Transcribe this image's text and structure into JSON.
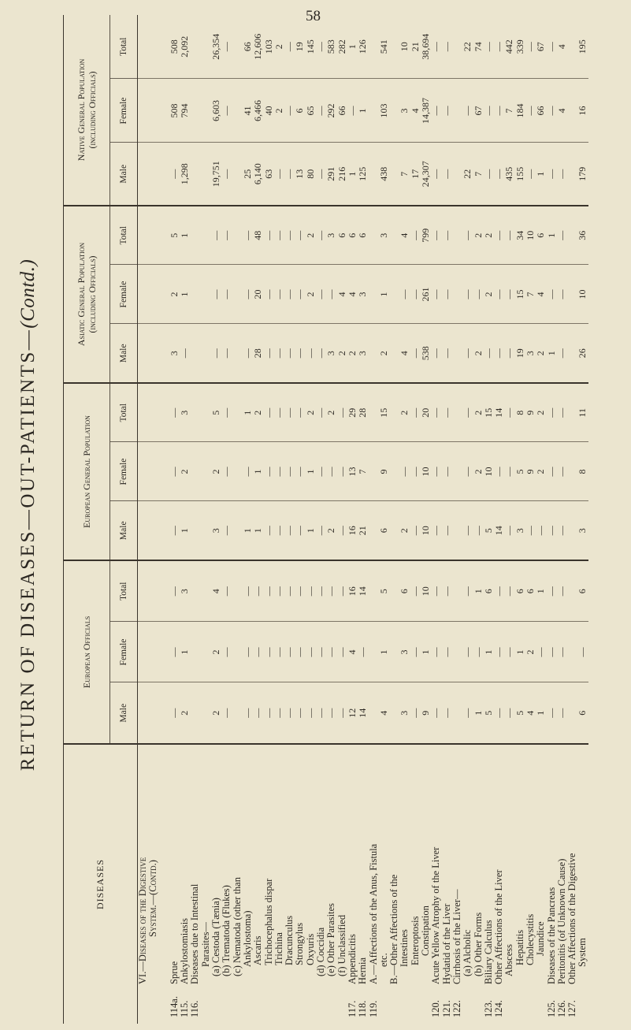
{
  "page_number": "58",
  "title": "RETURN OF DISEASES—OUT-PATIENTS—",
  "title_suffix": "(Contd.)",
  "headers": {
    "diseases": "DISEASES",
    "groups": [
      {
        "name": "European Officials",
        "sub": ""
      },
      {
        "name": "European General Population",
        "sub": ""
      },
      {
        "name": "Asiatic General Population",
        "sub": "(including Officials)"
      },
      {
        "name": "Native General Population",
        "sub": "(including Officials)"
      }
    ],
    "subcolumns": [
      "Male",
      "Female",
      "Total"
    ]
  },
  "rows": [
    {
      "num": "",
      "lines": [
        "VI.—Diseases of the Digestive",
        "System.—(Contd.)"
      ],
      "style": "heading",
      "cells": [
        "",
        "",
        "",
        "",
        "",
        "",
        "",
        "",
        "",
        "",
        "",
        ""
      ]
    },
    {
      "num": "114a.",
      "lines": [
        "Sprue"
      ],
      "style": "",
      "cells": [
        "—",
        "—",
        "—",
        "—",
        "—",
        "—",
        "3",
        "2",
        "5",
        "—",
        "508",
        "508"
      ]
    },
    {
      "num": "115.",
      "lines": [
        "Ankylostomiasis"
      ],
      "style": "",
      "cells": [
        "2",
        "1",
        "3",
        "1",
        "2",
        "3",
        "—",
        "1",
        "1",
        "1,298",
        "794",
        "2,092"
      ]
    },
    {
      "num": "116.",
      "lines": [
        "Diseases due to Intestinal",
        "Parasites—"
      ],
      "style": "cont",
      "cells": [
        "",
        "",
        "",
        "",
        "",
        "",
        "",
        "",
        "",
        "",
        "",
        ""
      ]
    },
    {
      "num": "",
      "lines": [
        "(a) Cestoda (Tænia)"
      ],
      "style": "ind1",
      "cells": [
        "2",
        "2",
        "4",
        "3",
        "2",
        "5",
        "—",
        "—",
        "—",
        "19,751",
        "6,603",
        "26,354"
      ]
    },
    {
      "num": "",
      "lines": [
        "(b) Trematoda (Flukes)"
      ],
      "style": "ind1",
      "cells": [
        "—",
        "—",
        "—",
        "—",
        "—",
        "—",
        "—",
        "—",
        "—",
        "—",
        "—",
        "—"
      ]
    },
    {
      "num": "",
      "lines": [
        "(c) Nematoda (other than",
        "Ankylostoma)"
      ],
      "style": "ind1 cont",
      "cells": [
        "—",
        "—",
        "—",
        "1",
        "—",
        "1",
        "—",
        "—",
        "—",
        "25",
        "41",
        "66"
      ]
    },
    {
      "num": "",
      "lines": [
        "Ascaris"
      ],
      "style": "ind2",
      "cells": [
        "—",
        "—",
        "—",
        "1",
        "1",
        "2",
        "28",
        "20",
        "48",
        "6,140",
        "6,466",
        "12,606"
      ]
    },
    {
      "num": "",
      "lines": [
        "Trichocephalus dispar"
      ],
      "style": "ind2",
      "cells": [
        "—",
        "—",
        "—",
        "—",
        "—",
        "—",
        "—",
        "—",
        "—",
        "63",
        "40",
        "103"
      ]
    },
    {
      "num": "",
      "lines": [
        "Trichina"
      ],
      "style": "ind2",
      "cells": [
        "—",
        "—",
        "—",
        "—",
        "—",
        "—",
        "—",
        "—",
        "—",
        "—",
        "2",
        "2"
      ]
    },
    {
      "num": "",
      "lines": [
        "Dracunculus"
      ],
      "style": "ind2",
      "cells": [
        "—",
        "—",
        "—",
        "—",
        "—",
        "—",
        "—",
        "—",
        "—",
        "—",
        "—",
        "—"
      ]
    },
    {
      "num": "",
      "lines": [
        "Strongylus"
      ],
      "style": "ind2",
      "cells": [
        "—",
        "—",
        "—",
        "—",
        "—",
        "—",
        "—",
        "—",
        "—",
        "13",
        "6",
        "19"
      ]
    },
    {
      "num": "",
      "lines": [
        "Oxyuris"
      ],
      "style": "ind2",
      "cells": [
        "—",
        "—",
        "—",
        "1",
        "1",
        "2",
        "—",
        "2",
        "2",
        "80",
        "65",
        "145"
      ]
    },
    {
      "num": "",
      "lines": [
        "(d) Coccidia"
      ],
      "style": "ind1",
      "cells": [
        "—",
        "—",
        "—",
        "—",
        "—",
        "—",
        "—",
        "—",
        "—",
        "—",
        "—",
        "—"
      ]
    },
    {
      "num": "",
      "lines": [
        "(e) Other Parasites"
      ],
      "style": "ind1",
      "cells": [
        "—",
        "—",
        "—",
        "2",
        "—",
        "2",
        "3",
        "—",
        "3",
        "291",
        "292",
        "583"
      ]
    },
    {
      "num": "",
      "lines": [
        "(f) Unclassified"
      ],
      "style": "ind1",
      "cells": [
        "—",
        "—",
        "—",
        "—",
        "—",
        "—",
        "2",
        "4",
        "6",
        "216",
        "66",
        "282"
      ]
    },
    {
      "num": "117.",
      "lines": [
        "Appendicitis"
      ],
      "style": "",
      "cells": [
        "12",
        "4",
        "16",
        "16",
        "13",
        "29",
        "2",
        "4",
        "6",
        "1",
        "—",
        "1"
      ]
    },
    {
      "num": "118.",
      "lines": [
        "Hernia"
      ],
      "style": "",
      "cells": [
        "14",
        "—",
        "14",
        "21",
        "7",
        "28",
        "3",
        "3",
        "6",
        "125",
        "1",
        "126"
      ]
    },
    {
      "num": "119.",
      "lines": [
        "A.—Affections of the Anus, Fistula",
        "etc."
      ],
      "style": "cont",
      "cells": [
        "4",
        "1",
        "5",
        "6",
        "9",
        "15",
        "2",
        "1",
        "3",
        "438",
        "103",
        "541"
      ]
    },
    {
      "num": "",
      "lines": [
        "B.—Other Affections of the",
        "Intestines"
      ],
      "style": "cont",
      "cells": [
        "3",
        "3",
        "6",
        "2",
        "—",
        "2",
        "4",
        "—",
        "4",
        "7",
        "3",
        "10"
      ]
    },
    {
      "num": "",
      "lines": [
        "Enteroptosis"
      ],
      "style": "ind2",
      "cells": [
        "—",
        "—",
        "—",
        "—",
        "—",
        "—",
        "—",
        "—",
        "—",
        "17",
        "4",
        "21"
      ]
    },
    {
      "num": "",
      "lines": [
        "Constipation"
      ],
      "style": "ind3",
      "cells": [
        "9",
        "1",
        "10",
        "10",
        "10",
        "20",
        "538",
        "261",
        "799",
        "24,307",
        "14,387",
        "38,694"
      ]
    },
    {
      "num": "120.",
      "lines": [
        "Acute Yellow Atrophy of the Liver"
      ],
      "style": "",
      "cells": [
        "—",
        "—",
        "—",
        "—",
        "—",
        "—",
        "—",
        "—",
        "—",
        "—",
        "—",
        "—"
      ]
    },
    {
      "num": "121.",
      "lines": [
        "Hydatid of the Liver"
      ],
      "style": "",
      "cells": [
        "—",
        "—",
        "—",
        "—",
        "—",
        "—",
        "—",
        "—",
        "—",
        "—",
        "—",
        "—"
      ]
    },
    {
      "num": "122.",
      "lines": [
        "Cirrhosis of the Liver—"
      ],
      "style": "",
      "cells": [
        "",
        "",
        "",
        "",
        "",
        "",
        "",
        "",
        "",
        "",
        "",
        ""
      ]
    },
    {
      "num": "",
      "lines": [
        "(a) Alcholic"
      ],
      "style": "ind1",
      "cells": [
        "—",
        "—",
        "—",
        "—",
        "—",
        "—",
        "—",
        "—",
        "—",
        "22",
        "—",
        "22"
      ]
    },
    {
      "num": "",
      "lines": [
        "(b) Other Forms"
      ],
      "style": "ind1",
      "cells": [
        "1",
        "—",
        "1",
        "—",
        "2",
        "2",
        "2",
        "—",
        "2",
        "7",
        "67",
        "74"
      ]
    },
    {
      "num": "123.",
      "lines": [
        "Biliary Calculus"
      ],
      "style": "",
      "cells": [
        "5",
        "1",
        "6",
        "5",
        "10",
        "15",
        "—",
        "2",
        "2",
        "—",
        "—",
        "—"
      ]
    },
    {
      "num": "124.",
      "lines": [
        "Other Affections of the Liver"
      ],
      "style": "",
      "cells": [
        "—",
        "—",
        "—",
        "14",
        "—",
        "14",
        "—",
        "—",
        "—",
        "—",
        "—",
        "—"
      ]
    },
    {
      "num": "",
      "lines": [
        "Abscess"
      ],
      "style": "ind1",
      "cells": [
        "—",
        "—",
        "—",
        "—",
        "—",
        "—",
        "—",
        "—",
        "—",
        "435",
        "7",
        "442"
      ]
    },
    {
      "num": "",
      "lines": [
        "Hepatitis"
      ],
      "style": "ind2",
      "cells": [
        "5",
        "1",
        "6",
        "3",
        "5",
        "8",
        "19",
        "15",
        "34",
        "155",
        "184",
        "339"
      ]
    },
    {
      "num": "",
      "lines": [
        "Cholecystitis"
      ],
      "style": "ind2",
      "cells": [
        "4",
        "2",
        "6",
        "—",
        "9",
        "9",
        "3",
        "7",
        "10",
        "—",
        "—",
        "—"
      ]
    },
    {
      "num": "",
      "lines": [
        "Jaundice"
      ],
      "style": "ind3",
      "cells": [
        "1",
        "—",
        "1",
        "—",
        "2",
        "2",
        "2",
        "4",
        "6",
        "1",
        "66",
        "67"
      ]
    },
    {
      "num": "125.",
      "lines": [
        "Diseases of the Pancreas"
      ],
      "style": "",
      "cells": [
        "—",
        "—",
        "—",
        "—",
        "—",
        "—",
        "1",
        "—",
        "1",
        "—",
        "—",
        "—"
      ]
    },
    {
      "num": "126.",
      "lines": [
        "Peritonitis (of Unknown Cause)"
      ],
      "style": "",
      "cells": [
        "—",
        "—",
        "—",
        "—",
        "—",
        "—",
        "—",
        "—",
        "—",
        "—",
        "4",
        "4"
      ]
    },
    {
      "num": "127.",
      "lines": [
        "Other Affections of the Digestive",
        "System"
      ],
      "style": "cont",
      "cells": [
        "6",
        "—",
        "6",
        "3",
        "8",
        "11",
        "26",
        "10",
        "36",
        "179",
        "16",
        "195"
      ]
    }
  ],
  "colors": {
    "paper": "#ebe5cf",
    "ink": "#2b2722"
  }
}
